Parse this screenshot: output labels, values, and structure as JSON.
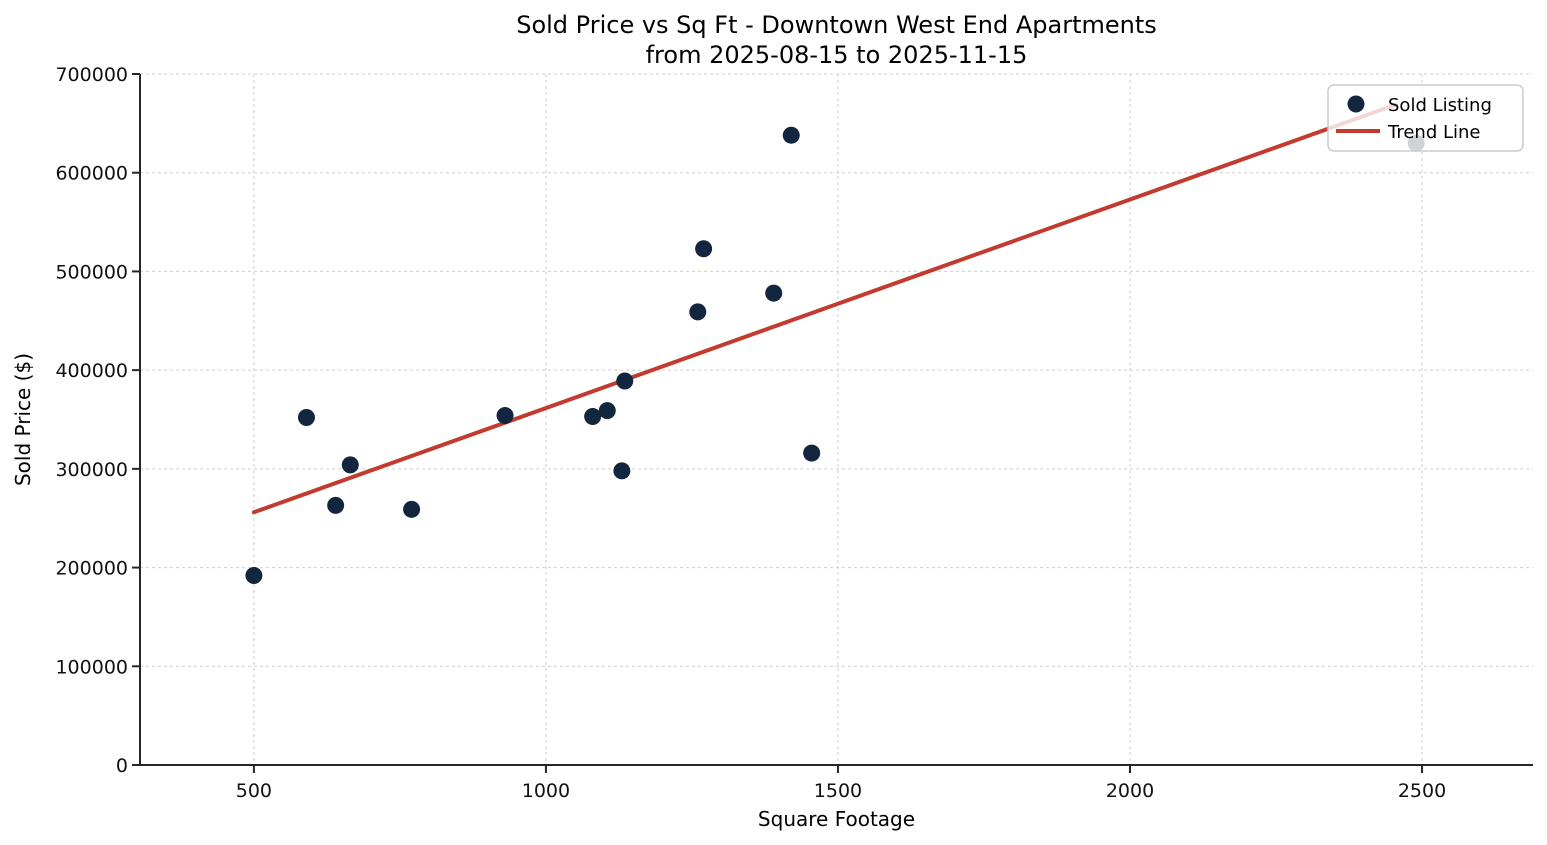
{
  "figure": {
    "background": "#ffffff"
  },
  "chart_data": {
    "type": "scatter",
    "title": "Sold Price vs Sq Ft - Downtown West End Apartments",
    "subtitle": "from 2025-08-15 to 2025-11-15",
    "xlabel": "Square Footage",
    "ylabel": "Sold Price ($)",
    "xlim": [
      305,
      2690
    ],
    "ylim": [
      0,
      700000
    ],
    "xticks": [
      500,
      1000,
      1500,
      2000,
      2500
    ],
    "yticks": [
      0,
      100000,
      200000,
      300000,
      400000,
      500000,
      600000,
      700000
    ],
    "grid": true,
    "grid_style": "dashed",
    "legend_position": "upper right",
    "legend_items": [
      {
        "label": "Sold Listing",
        "marker": "point",
        "color": "#13263f"
      },
      {
        "label": "Trend Line",
        "marker": "line",
        "color": "#c23b2e"
      }
    ],
    "series": [
      {
        "name": "Sold Listing",
        "type": "scatter",
        "color": "#13263f",
        "marker_radius": 8.5,
        "points": [
          [
            500,
            192000
          ],
          [
            590,
            352000
          ],
          [
            640,
            263000
          ],
          [
            665,
            304000
          ],
          [
            770,
            259000
          ],
          [
            930,
            354000
          ],
          [
            1080,
            353000
          ],
          [
            1105,
            359000
          ],
          [
            1130,
            298000
          ],
          [
            1135,
            389000
          ],
          [
            1260,
            459000
          ],
          [
            1270,
            523000
          ],
          [
            1390,
            478000
          ],
          [
            1420,
            638000
          ],
          [
            1455,
            316000
          ],
          [
            2490,
            630000
          ]
        ]
      },
      {
        "name": "Trend Line",
        "type": "line",
        "color": "#c23b2e",
        "line_width": 4,
        "points": [
          [
            500,
            256000
          ],
          [
            2455,
            669000
          ]
        ]
      }
    ],
    "axis_color": "#262626",
    "grid_color": "#d0d0d0",
    "tick_label_color": "#111111",
    "legend_face": "#ffffff",
    "legend_edge": "#cccccc"
  }
}
